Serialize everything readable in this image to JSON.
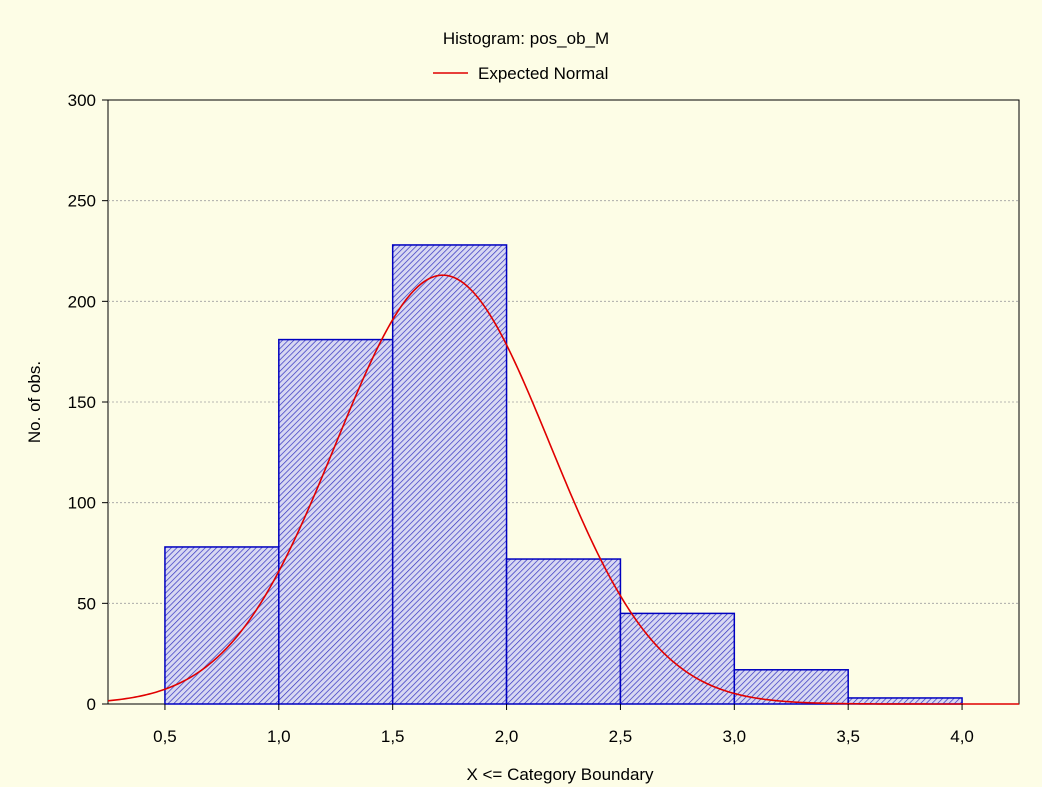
{
  "chart_data": {
    "type": "bar",
    "title": "Histogram: pos_ob_M",
    "xlabel": "X <= Category Boundary",
    "ylabel": "No. of obs.",
    "xlim": [
      0.25,
      4.25
    ],
    "ylim": [
      0,
      300
    ],
    "xticks": [
      0.5,
      1.0,
      1.5,
      2.0,
      2.5,
      3.0,
      3.5,
      4.0
    ],
    "xtick_labels": [
      "0,5",
      "1,0",
      "1,5",
      "2,0",
      "2,5",
      "3,0",
      "3,5",
      "4,0"
    ],
    "yticks": [
      0,
      50,
      100,
      150,
      200,
      250,
      300
    ],
    "ytick_labels": [
      "0",
      "50",
      "100",
      "150",
      "200",
      "250",
      "300"
    ],
    "bins": [
      {
        "from": 0.5,
        "to": 1.0,
        "value": 78
      },
      {
        "from": 1.0,
        "to": 1.5,
        "value": 181
      },
      {
        "from": 1.5,
        "to": 2.0,
        "value": 228
      },
      {
        "from": 2.0,
        "to": 2.5,
        "value": 72
      },
      {
        "from": 2.5,
        "to": 3.0,
        "value": 45
      },
      {
        "from": 3.0,
        "to": 3.5,
        "value": 17
      },
      {
        "from": 3.5,
        "to": 4.0,
        "value": 3
      }
    ],
    "expected_normal": {
      "name": "Expected Normal",
      "mean": 1.72,
      "sd": 0.47,
      "peak": 213,
      "color": "#e00000"
    },
    "grid": true,
    "legend_position": "top-center",
    "bar_color": "#0000c0",
    "background_color": "#fdfde6"
  }
}
